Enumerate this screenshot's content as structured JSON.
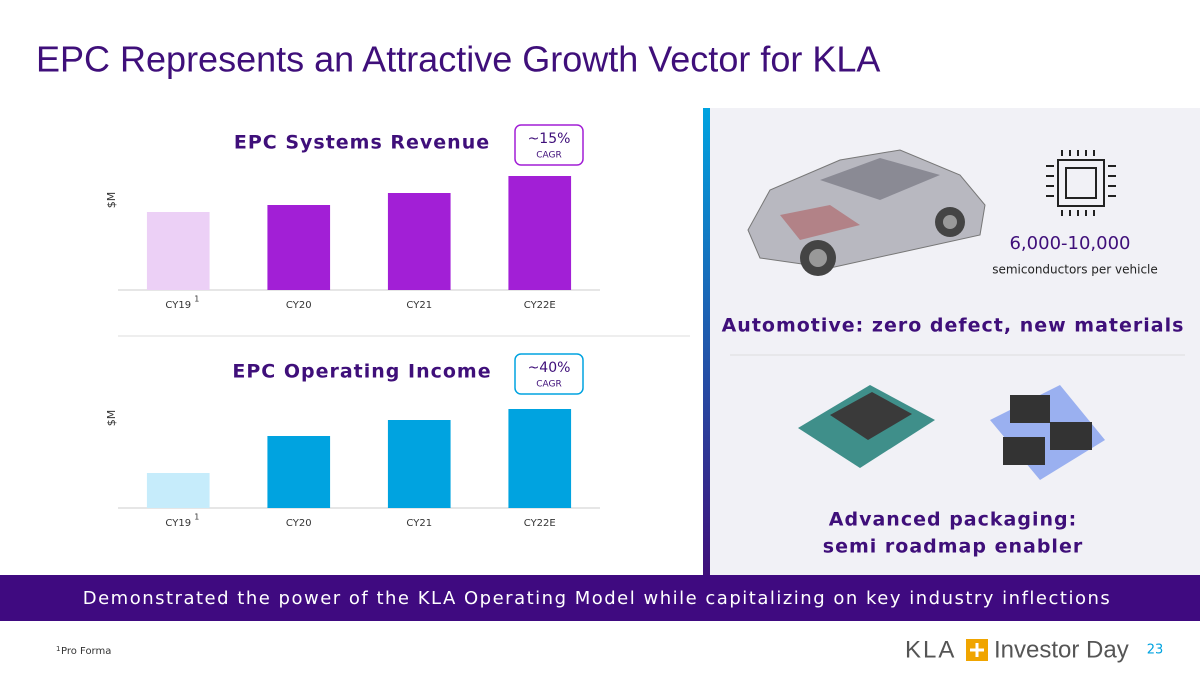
{
  "title": "EPC Represents an Attractive Growth Vector for KLA",
  "chart_data": [
    {
      "type": "bar",
      "title": "EPC Systems Revenue",
      "y_label": "$M",
      "cagr": {
        "value": "~15%",
        "label": "CAGR"
      },
      "badge_color": "#a21fd6",
      "categories": [
        "CY19",
        "CY20",
        "CY21",
        "CY22E"
      ],
      "category_marks": [
        "1",
        null,
        null,
        null
      ],
      "values": [
        78,
        85,
        97,
        114
      ],
      "colors": [
        "#ecd0f6",
        "#a21fd6",
        "#a21fd6",
        "#a21fd6"
      ],
      "ylim": [
        0,
        120
      ]
    },
    {
      "type": "bar",
      "title": "EPC Operating Income",
      "y_label": "$M",
      "cagr": {
        "value": "~40%",
        "label": "CAGR"
      },
      "badge_color": "#00a3e0",
      "categories": [
        "CY19",
        "CY20",
        "CY21",
        "CY22E"
      ],
      "category_marks": [
        "1",
        null,
        null,
        null
      ],
      "values": [
        35,
        72,
        88,
        99
      ],
      "colors": [
        "#c6ecfb",
        "#00a3e0",
        "#00a3e0",
        "#00a3e0"
      ],
      "ylim": [
        0,
        120
      ]
    }
  ],
  "automotive": {
    "count": "6,000-10,000",
    "count_label": "semiconductors per vehicle",
    "heading": "Automotive: zero defect, new materials"
  },
  "packaging": {
    "heading_1": "Advanced packaging:",
    "heading_2": "semi roadmap enabler"
  },
  "banner": "Demonstrated the power of the KLA Operating Model while capitalizing on key industry inflections",
  "footnote": {
    "mark": "1",
    "text": "Pro Forma"
  },
  "footer": {
    "brand": "KLA",
    "event": "Investor Day",
    "page": 23
  }
}
